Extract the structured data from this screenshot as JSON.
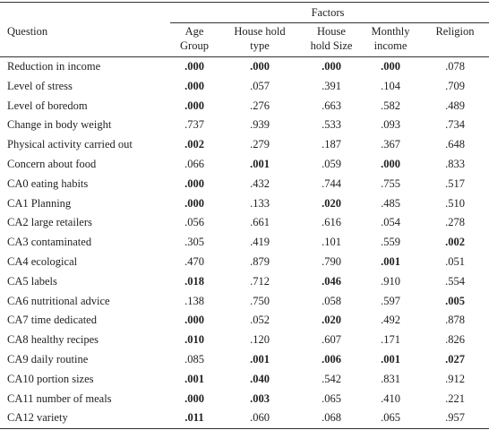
{
  "table": {
    "group_header": "Factors",
    "question_header": "Question",
    "columns": [
      [
        "Age",
        "Group"
      ],
      [
        "House hold",
        "type"
      ],
      [
        "House",
        "hold Size"
      ],
      [
        "Monthly",
        "income"
      ],
      [
        "Religion"
      ]
    ],
    "rows": [
      {
        "question": "Reduction in income",
        "values": [
          ".000",
          ".000",
          ".000",
          ".000",
          ".078"
        ],
        "bold": [
          true,
          true,
          true,
          true,
          false
        ]
      },
      {
        "question": "Level of stress",
        "values": [
          ".000",
          ".057",
          ".391",
          ".104",
          ".709"
        ],
        "bold": [
          true,
          false,
          false,
          false,
          false
        ]
      },
      {
        "question": "Level of boredom",
        "values": [
          ".000",
          ".276",
          ".663",
          ".582",
          ".489"
        ],
        "bold": [
          true,
          false,
          false,
          false,
          false
        ]
      },
      {
        "question": "Change in body weight",
        "values": [
          ".737",
          ".939",
          ".533",
          ".093",
          ".734"
        ],
        "bold": [
          false,
          false,
          false,
          false,
          false
        ]
      },
      {
        "question": "Physical activity carried out",
        "values": [
          ".002",
          ".279",
          ".187",
          ".367",
          ".648"
        ],
        "bold": [
          true,
          false,
          false,
          false,
          false
        ]
      },
      {
        "question": "Concern about food",
        "values": [
          ".066",
          ".001",
          ".059",
          ".000",
          ".833"
        ],
        "bold": [
          false,
          true,
          false,
          true,
          false
        ]
      },
      {
        "question": "CA0 eating habits",
        "values": [
          ".000",
          ".432",
          ".744",
          ".755",
          ".517"
        ],
        "bold": [
          true,
          false,
          false,
          false,
          false
        ]
      },
      {
        "question": "CA1 Planning",
        "values": [
          ".000",
          ".133",
          ".020",
          ".485",
          ".510"
        ],
        "bold": [
          true,
          false,
          true,
          false,
          false
        ]
      },
      {
        "question": "CA2 large retailers",
        "values": [
          ".056",
          ".661",
          ".616",
          ".054",
          ".278"
        ],
        "bold": [
          false,
          false,
          false,
          false,
          false
        ]
      },
      {
        "question": "CA3 contaminated",
        "values": [
          ".305",
          ".419",
          ".101",
          ".559",
          ".002"
        ],
        "bold": [
          false,
          false,
          false,
          false,
          true
        ]
      },
      {
        "question": "CA4 ecological",
        "values": [
          ".470",
          ".879",
          ".790",
          ".001",
          ".051"
        ],
        "bold": [
          false,
          false,
          false,
          true,
          false
        ]
      },
      {
        "question": "CA5 labels",
        "values": [
          ".018",
          ".712",
          ".046",
          ".910",
          ".554"
        ],
        "bold": [
          true,
          false,
          true,
          false,
          false
        ]
      },
      {
        "question": "CA6 nutritional advice",
        "values": [
          ".138",
          ".750",
          ".058",
          ".597",
          ".005"
        ],
        "bold": [
          false,
          false,
          false,
          false,
          true
        ]
      },
      {
        "question": "CA7 time dedicated",
        "values": [
          ".000",
          ".052",
          ".020",
          ".492",
          ".878"
        ],
        "bold": [
          true,
          false,
          true,
          false,
          false
        ]
      },
      {
        "question": "CA8 healthy recipes",
        "values": [
          ".010",
          ".120",
          ".607",
          ".171",
          ".826"
        ],
        "bold": [
          true,
          false,
          false,
          false,
          false
        ]
      },
      {
        "question": "CA9 daily routine",
        "values": [
          ".085",
          ".001",
          ".006",
          ".001",
          ".027"
        ],
        "bold": [
          false,
          true,
          true,
          true,
          true
        ]
      },
      {
        "question": "CA10 portion sizes",
        "values": [
          ".001",
          ".040",
          ".542",
          ".831",
          ".912"
        ],
        "bold": [
          true,
          true,
          false,
          false,
          false
        ]
      },
      {
        "question": "CA11 number of meals",
        "values": [
          ".000",
          ".003",
          ".065",
          ".410",
          ".221"
        ],
        "bold": [
          true,
          true,
          false,
          false,
          false
        ]
      },
      {
        "question": "CA12 variety",
        "values": [
          ".011",
          ".060",
          ".068",
          ".065",
          ".957"
        ],
        "bold": [
          true,
          false,
          false,
          false,
          false
        ]
      }
    ]
  }
}
